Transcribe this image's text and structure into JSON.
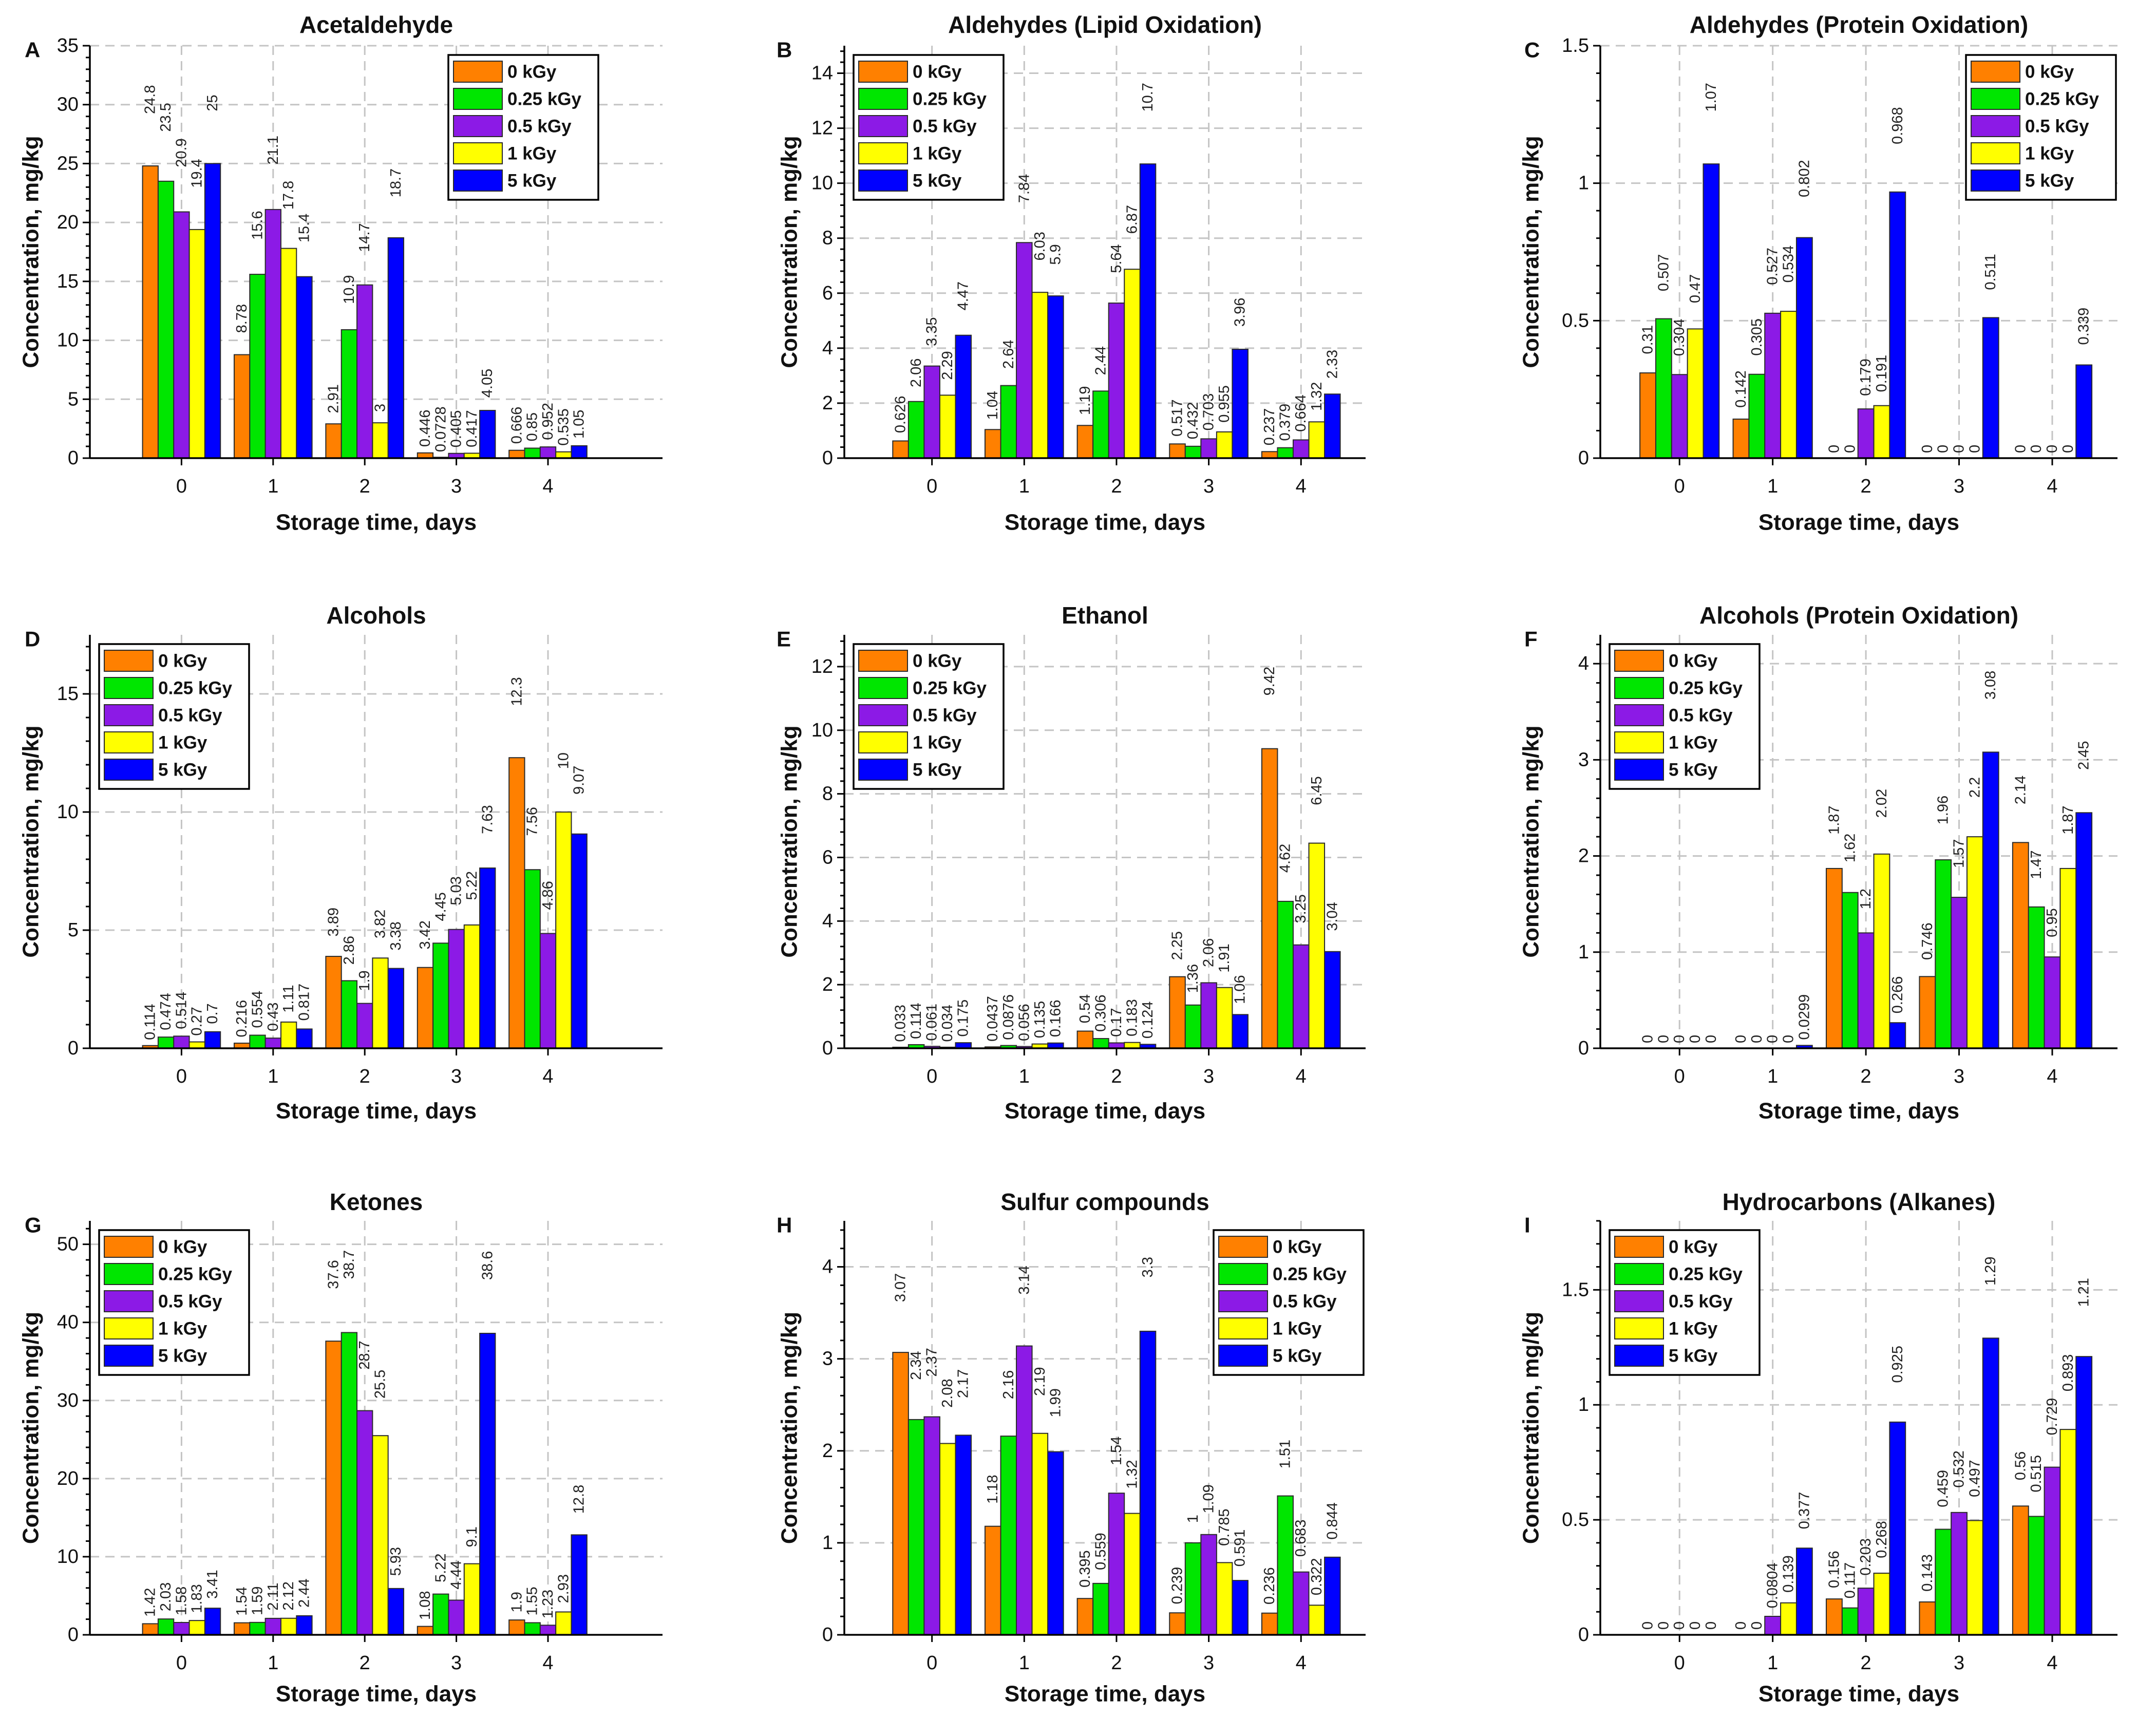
{
  "palette": [
    "#FF8000",
    "#00E600",
    "#8C1AE6",
    "#FFFF00",
    "#0000FF"
  ],
  "chart_data": [
    {
      "panel": "A",
      "type": "bar",
      "title": "Acetaldehyde",
      "xlabel": "Storage time, days",
      "ylabel": "Concentration, mg/kg",
      "categories": [
        "0",
        "1",
        "2",
        "3",
        "4"
      ],
      "xlim": [
        -1,
        5.25
      ],
      "ylim": [
        0,
        35
      ],
      "yticks": [
        0,
        5,
        10,
        15,
        20,
        25,
        30,
        35
      ],
      "grid": true,
      "legend": "top-right",
      "series": [
        {
          "name": "0 kGy",
          "values": [
            24.8,
            8.78,
            2.91,
            0.446,
            0.666
          ]
        },
        {
          "name": "0.25 kGy",
          "values": [
            23.5,
            15.6,
            10.9,
            0.0728,
            0.85
          ]
        },
        {
          "name": "0.5 kGy",
          "values": [
            20.9,
            21.1,
            14.7,
            0.405,
            0.952
          ]
        },
        {
          "name": "1 kGy",
          "values": [
            19.4,
            17.8,
            3,
            0.417,
            0.535
          ]
        },
        {
          "name": "5 kGy",
          "values": [
            25,
            15.4,
            18.7,
            4.05,
            1.05
          ]
        }
      ]
    },
    {
      "panel": "B",
      "type": "bar",
      "title": "Aldehydes (Lipid Oxidation)",
      "xlabel": "Storage time, days",
      "ylabel": "Concentration, mg/kg",
      "categories": [
        "0",
        "1",
        "2",
        "3",
        "4"
      ],
      "xlim": [
        -0.95,
        4.7
      ],
      "ylim": [
        0,
        15
      ],
      "yticks": [
        0,
        2,
        4,
        6,
        8,
        10,
        12,
        14
      ],
      "grid": true,
      "legend": "top-left",
      "series": [
        {
          "name": "0 kGy",
          "values": [
            0.626,
            1.04,
            1.19,
            0.517,
            0.237
          ]
        },
        {
          "name": "0.25 kGy",
          "values": [
            2.06,
            2.64,
            2.44,
            0.432,
            0.379
          ]
        },
        {
          "name": "0.5 kGy",
          "values": [
            3.35,
            7.84,
            5.64,
            0.703,
            0.664
          ]
        },
        {
          "name": "1 kGy",
          "values": [
            2.29,
            6.03,
            6.87,
            0.955,
            1.32
          ]
        },
        {
          "name": "5 kGy",
          "values": [
            4.47,
            5.9,
            10.7,
            3.96,
            2.33
          ]
        }
      ]
    },
    {
      "panel": "C",
      "type": "bar",
      "title": "Aldehydes (Protein Oxidation)",
      "xlabel": "Storage time, days",
      "ylabel": "Concentration, mg/kg",
      "categories": [
        "0",
        "1",
        "2",
        "3",
        "4"
      ],
      "xlim": [
        -0.85,
        4.7
      ],
      "ylim": [
        0,
        1.5
      ],
      "yticks": [
        0,
        0.5,
        1,
        1.5
      ],
      "grid": true,
      "legend": "top-right",
      "series": [
        {
          "name": "0 kGy",
          "values": [
            0.31,
            0.142,
            0,
            0,
            0
          ]
        },
        {
          "name": "0.25 kGy",
          "values": [
            0.507,
            0.305,
            0,
            0,
            0
          ]
        },
        {
          "name": "0.5 kGy",
          "values": [
            0.304,
            0.527,
            0.179,
            0,
            0
          ]
        },
        {
          "name": "1 kGy",
          "values": [
            0.47,
            0.534,
            0.191,
            0,
            0
          ]
        },
        {
          "name": "5 kGy",
          "values": [
            1.07,
            0.802,
            0.968,
            0.511,
            0.339
          ]
        }
      ]
    },
    {
      "panel": "D",
      "type": "bar",
      "title": "Alcohols",
      "xlabel": "Storage time, days",
      "ylabel": "Concentration, mg/kg",
      "categories": [
        "0",
        "1",
        "2",
        "3",
        "4"
      ],
      "xlim": [
        -1,
        5.25
      ],
      "ylim": [
        0,
        17.5
      ],
      "yticks": [
        0,
        5,
        10,
        15
      ],
      "grid": true,
      "legend": "top-left",
      "series": [
        {
          "name": "0 kGy",
          "values": [
            0.114,
            0.216,
            3.89,
            3.42,
            12.3
          ]
        },
        {
          "name": "0.25 kGy",
          "values": [
            0.474,
            0.554,
            2.86,
            4.45,
            7.56
          ]
        },
        {
          "name": "0.5 kGy",
          "values": [
            0.514,
            0.43,
            1.9,
            5.03,
            4.86
          ]
        },
        {
          "name": "1 kGy",
          "values": [
            0.27,
            1.11,
            3.82,
            5.22,
            10
          ]
        },
        {
          "name": "5 kGy",
          "values": [
            0.7,
            0.817,
            3.38,
            7.63,
            9.07
          ]
        }
      ]
    },
    {
      "panel": "E",
      "type": "bar",
      "title": "Ethanol",
      "xlabel": "Storage time, days",
      "ylabel": "Concentration, mg/kg",
      "categories": [
        "0",
        "1",
        "2",
        "3",
        "4"
      ],
      "xlim": [
        -0.95,
        4.7
      ],
      "ylim": [
        0,
        13
      ],
      "yticks": [
        0,
        2,
        4,
        6,
        8,
        10,
        12
      ],
      "grid": true,
      "legend": "top-left",
      "series": [
        {
          "name": "0 kGy",
          "values": [
            0.033,
            0.0437,
            0.54,
            2.25,
            9.42
          ]
        },
        {
          "name": "0.25 kGy",
          "values": [
            0.114,
            0.0876,
            0.306,
            1.36,
            4.62
          ]
        },
        {
          "name": "0.5 kGy",
          "values": [
            0.061,
            0.056,
            0.17,
            2.06,
            3.25
          ]
        },
        {
          "name": "1 kGy",
          "values": [
            0.034,
            0.135,
            0.183,
            1.91,
            6.45
          ]
        },
        {
          "name": "5 kGy",
          "values": [
            0.175,
            0.166,
            0.124,
            1.06,
            3.04
          ]
        }
      ]
    },
    {
      "panel": "F",
      "type": "bar",
      "title": "Alcohols (Protein Oxidation)",
      "xlabel": "Storage time, days",
      "ylabel": "Concentration, mg/kg",
      "categories": [
        "0",
        "1",
        "2",
        "3",
        "4"
      ],
      "xlim": [
        -0.85,
        4.7
      ],
      "ylim": [
        0,
        4.3
      ],
      "yticks": [
        0,
        1,
        2,
        3,
        4
      ],
      "grid": true,
      "legend": "top-left",
      "series": [
        {
          "name": "0 kGy",
          "values": [
            0,
            0,
            1.87,
            0.746,
            2.14
          ]
        },
        {
          "name": "0.25 kGy",
          "values": [
            0,
            0,
            1.62,
            1.96,
            1.47
          ]
        },
        {
          "name": "0.5 kGy",
          "values": [
            0,
            0,
            1.2,
            1.57,
            0.95
          ]
        },
        {
          "name": "1 kGy",
          "values": [
            0,
            0,
            2.02,
            2.2,
            1.87
          ]
        },
        {
          "name": "5 kGy",
          "values": [
            0,
            0.0299,
            0.266,
            3.08,
            2.45
          ]
        }
      ]
    },
    {
      "panel": "G",
      "type": "bar",
      "title": "Ketones",
      "xlabel": "Storage time, days",
      "ylabel": "Concentration, mg/kg",
      "categories": [
        "0",
        "1",
        "2",
        "3",
        "4"
      ],
      "xlim": [
        -1,
        5.25
      ],
      "ylim": [
        0,
        53
      ],
      "yticks": [
        0,
        10,
        20,
        30,
        40,
        50
      ],
      "grid": true,
      "legend": "top-left",
      "series": [
        {
          "name": "0 kGy",
          "values": [
            1.42,
            1.54,
            37.6,
            1.08,
            1.9
          ]
        },
        {
          "name": "0.25 kGy",
          "values": [
            2.03,
            1.59,
            38.7,
            5.22,
            1.55
          ]
        },
        {
          "name": "0.5 kGy",
          "values": [
            1.58,
            2.11,
            28.7,
            4.44,
            1.23
          ]
        },
        {
          "name": "1 kGy",
          "values": [
            1.83,
            2.12,
            25.5,
            9.1,
            2.93
          ]
        },
        {
          "name": "5 kGy",
          "values": [
            3.41,
            2.44,
            5.93,
            38.6,
            12.8
          ]
        }
      ]
    },
    {
      "panel": "H",
      "type": "bar",
      "title": "Sulfur compounds",
      "xlabel": "Storage time, days",
      "ylabel": "Concentration, mg/kg",
      "categories": [
        "0",
        "1",
        "2",
        "3",
        "4"
      ],
      "xlim": [
        -0.95,
        4.7
      ],
      "ylim": [
        0,
        4.5
      ],
      "yticks": [
        0,
        1,
        2,
        3,
        4
      ],
      "grid": true,
      "legend": "top-right",
      "series": [
        {
          "name": "0 kGy",
          "values": [
            3.07,
            1.18,
            0.395,
            0.239,
            0.236
          ]
        },
        {
          "name": "0.25 kGy",
          "values": [
            2.34,
            2.16,
            0.559,
            1,
            1.51
          ]
        },
        {
          "name": "0.5 kGy",
          "values": [
            2.37,
            3.14,
            1.54,
            1.09,
            0.683
          ]
        },
        {
          "name": "1 kGy",
          "values": [
            2.08,
            2.19,
            1.32,
            0.785,
            0.322
          ]
        },
        {
          "name": "5 kGy",
          "values": [
            2.17,
            1.99,
            3.3,
            0.591,
            0.844
          ]
        }
      ]
    },
    {
      "panel": "I",
      "type": "bar",
      "title": "Hydrocarbons (Alkanes)",
      "xlabel": "Storage time, days",
      "ylabel": "Concentration, mg/kg",
      "categories": [
        "0",
        "1",
        "2",
        "3",
        "4"
      ],
      "xlim": [
        -0.85,
        4.7
      ],
      "ylim": [
        0,
        1.8
      ],
      "yticks": [
        0,
        0.5,
        1,
        1.5
      ],
      "grid": true,
      "legend": "top-left",
      "series": [
        {
          "name": "0 kGy",
          "values": [
            0,
            0,
            0.156,
            0.143,
            0.56
          ]
        },
        {
          "name": "0.25 kGy",
          "values": [
            0,
            0,
            0.117,
            0.459,
            0.515
          ]
        },
        {
          "name": "0.5 kGy",
          "values": [
            0,
            0.0804,
            0.203,
            0.532,
            0.729
          ]
        },
        {
          "name": "1 kGy",
          "values": [
            0,
            0.139,
            0.268,
            0.497,
            0.893
          ]
        },
        {
          "name": "5 kGy",
          "values": [
            0,
            0.377,
            0.925,
            1.29,
            1.21
          ]
        }
      ]
    }
  ]
}
